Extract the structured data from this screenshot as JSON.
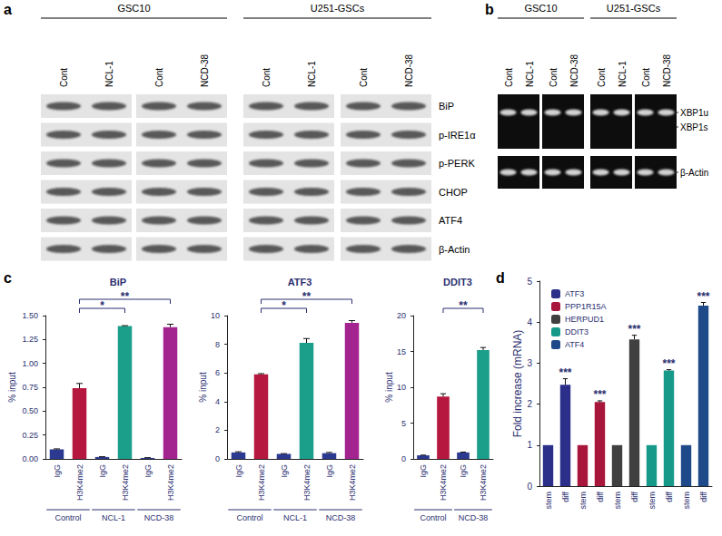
{
  "panel_labels": [
    "a",
    "b",
    "c",
    "d"
  ],
  "blots": [
    {
      "groups": [
        {
          "name": "GSC10",
          "blocks": [
            [
              "Cont",
              "NCL-1"
            ],
            [
              "Cont",
              "NCD-38"
            ]
          ]
        },
        {
          "name": "U251-GSCs",
          "blocks": [
            [
              "Cont",
              "NCL-1"
            ],
            [
              "Cont",
              "NCD-38"
            ]
          ]
        }
      ],
      "rows": [
        "BiP",
        "p-IRE1α",
        "p-PERK",
        "CHOP",
        "ATF4",
        "β-Actin"
      ]
    },
    {
      "groups": [
        {
          "name": "GSC10",
          "blocks": [
            [
              "Cont",
              "NCL-1"
            ],
            [
              "Cont",
              "NCD-38"
            ]
          ]
        },
        {
          "name": "U251-GSCs",
          "blocks": [
            [
              "Cont",
              "NCL-1"
            ],
            [
              "Cont",
              "NCD-38"
            ]
          ]
        }
      ],
      "rows": [
        [
          "XBP1u",
          "XBP1s"
        ],
        [
          "β-Actin"
        ]
      ]
    }
  ],
  "chart_data": [
    {
      "type": "bar",
      "title": "BiP",
      "ylabel": "% input",
      "categories": [
        "IgG",
        "H3K4me2",
        "IgG",
        "H3K4me2",
        "IgG",
        "H3K4me2"
      ],
      "groups": [
        "Control",
        "NCL-1",
        "NCD-38"
      ],
      "values": [
        0.1,
        0.74,
        0.02,
        1.39,
        0.01,
        1.38
      ],
      "errors": [
        0.005,
        0.05,
        0.003,
        0.005,
        0.003,
        0.03
      ],
      "colors": [
        "#2b3990",
        "#b5173e",
        "#2b3990",
        "#1b9e8a",
        "#2b3990",
        "#a3238f"
      ],
      "ylim": [
        0,
        1.5
      ],
      "yticks": [
        {
          "value": 0,
          "label": "0.00"
        },
        0.25,
        {
          "value": 0.5,
          "label": "0.50"
        },
        0.75,
        {
          "value": 1,
          "label": "1.00"
        },
        1.25,
        {
          "value": 1.5,
          "label": "1.50"
        }
      ],
      "brackets": [
        {
          "from": [
            "Control",
            "H3K4me2"
          ],
          "to": [
            "NCL-1",
            "H3K4me2"
          ],
          "text": "*"
        },
        {
          "from": [
            "Control",
            "H3K4me2"
          ],
          "to": [
            "NCD-38",
            "H3K4me2"
          ],
          "text": "**"
        }
      ],
      "grid": false
    },
    {
      "type": "bar",
      "title": "ATF3",
      "ylabel": "% input",
      "categories": [
        "IgG",
        "H3K4me2",
        "IgG",
        "H3K4me2",
        "IgG",
        "H3K4me2"
      ],
      "groups": [
        "Control",
        "NCL-1",
        "NCD-38"
      ],
      "values": [
        0.45,
        5.9,
        0.35,
        8.1,
        0.4,
        9.5
      ],
      "errors": [
        0.05,
        0.05,
        0.02,
        0.3,
        0.05,
        0.15
      ],
      "colors": [
        "#2b3990",
        "#b5173e",
        "#2b3990",
        "#1b9e8a",
        "#2b3990",
        "#a3238f"
      ],
      "ylim": [
        0,
        10
      ],
      "yticks": [
        0,
        2,
        4,
        6,
        8,
        10
      ],
      "brackets": [
        {
          "from": [
            "Control",
            "H3K4me2"
          ],
          "to": [
            "NCL-1",
            "H3K4me2"
          ],
          "text": "*"
        },
        {
          "from": [
            "Control",
            "H3K4me2"
          ],
          "to": [
            "NCD-38",
            "H3K4me2"
          ],
          "text": "**"
        }
      ],
      "grid": false
    },
    {
      "type": "bar",
      "title": "DDIT3",
      "ylabel": "% input",
      "categories": [
        "IgG",
        "H3K4me2",
        "IgG",
        "H3K4me2"
      ],
      "groups": [
        "Control",
        "NCD-38"
      ],
      "values": [
        0.5,
        8.7,
        0.9,
        15.2
      ],
      "errors": [
        0.03,
        0.4,
        0.05,
        0.35
      ],
      "colors": [
        "#2b3990",
        "#b5173e",
        "#2b3990",
        "#1b9e8a"
      ],
      "ylim": [
        0,
        20
      ],
      "yticks": [
        0,
        5,
        10,
        15,
        20
      ],
      "brackets": [
        {
          "from": [
            "Control",
            "H3K4me2"
          ],
          "to": [
            "NCD-38",
            "H3K4me2"
          ],
          "text": "**"
        }
      ],
      "grid": false
    },
    {
      "type": "bar",
      "ylabel": "Fold increase (mRNA)",
      "categories": [
        "stem",
        "diff",
        "stem",
        "diff",
        "stem",
        "diff",
        "stem",
        "diff",
        "stem",
        "diff"
      ],
      "series": [
        {
          "name": "ATF3",
          "color": "#2b2f8a",
          "values": [
            1,
            2.47,
            null,
            null,
            null,
            null,
            null,
            null,
            null,
            null
          ],
          "errors": [
            null,
            0.15,
            null,
            null,
            null,
            null,
            null,
            null,
            null,
            null
          ],
          "annotations": [
            null,
            "***",
            null,
            null,
            null,
            null,
            null,
            null,
            null,
            null
          ]
        },
        {
          "name": "PPP1R15A",
          "color": "#a8163c",
          "values": [
            null,
            null,
            1,
            2.05,
            null,
            null,
            null,
            null,
            null,
            null
          ],
          "errors": [
            null,
            null,
            null,
            0.03,
            null,
            null,
            null,
            null,
            null,
            null
          ],
          "annotations": [
            null,
            null,
            null,
            "***",
            null,
            null,
            null,
            null,
            null,
            null
          ]
        },
        {
          "name": "HERPUD1",
          "color": "#404040",
          "values": [
            null,
            null,
            null,
            null,
            1,
            3.58,
            null,
            null,
            null,
            null
          ],
          "errors": [
            null,
            null,
            null,
            null,
            null,
            0.1,
            null,
            null,
            null,
            null
          ],
          "annotations": [
            null,
            null,
            null,
            null,
            null,
            "***",
            null,
            null,
            null,
            null
          ]
        },
        {
          "name": "DDIT3",
          "color": "#17998a",
          "values": [
            null,
            null,
            null,
            null,
            null,
            null,
            1,
            2.82,
            null,
            null
          ],
          "errors": [
            null,
            null,
            null,
            null,
            null,
            null,
            null,
            0.02,
            null,
            null
          ],
          "annotations": [
            null,
            null,
            null,
            null,
            null,
            null,
            null,
            "***",
            null,
            null
          ]
        },
        {
          "name": "ATF4",
          "color": "#1f4a8a",
          "values": [
            null,
            null,
            null,
            null,
            null,
            null,
            null,
            null,
            1,
            4.4
          ],
          "errors": [
            null,
            null,
            null,
            null,
            null,
            null,
            null,
            null,
            null,
            0.08
          ],
          "annotations": [
            null,
            null,
            null,
            null,
            null,
            null,
            null,
            null,
            null,
            "***"
          ]
        }
      ],
      "ylim": [
        0,
        5
      ],
      "yticks": [
        0,
        1,
        2,
        3,
        4,
        5
      ],
      "legend": "top-left",
      "grid": false
    }
  ]
}
